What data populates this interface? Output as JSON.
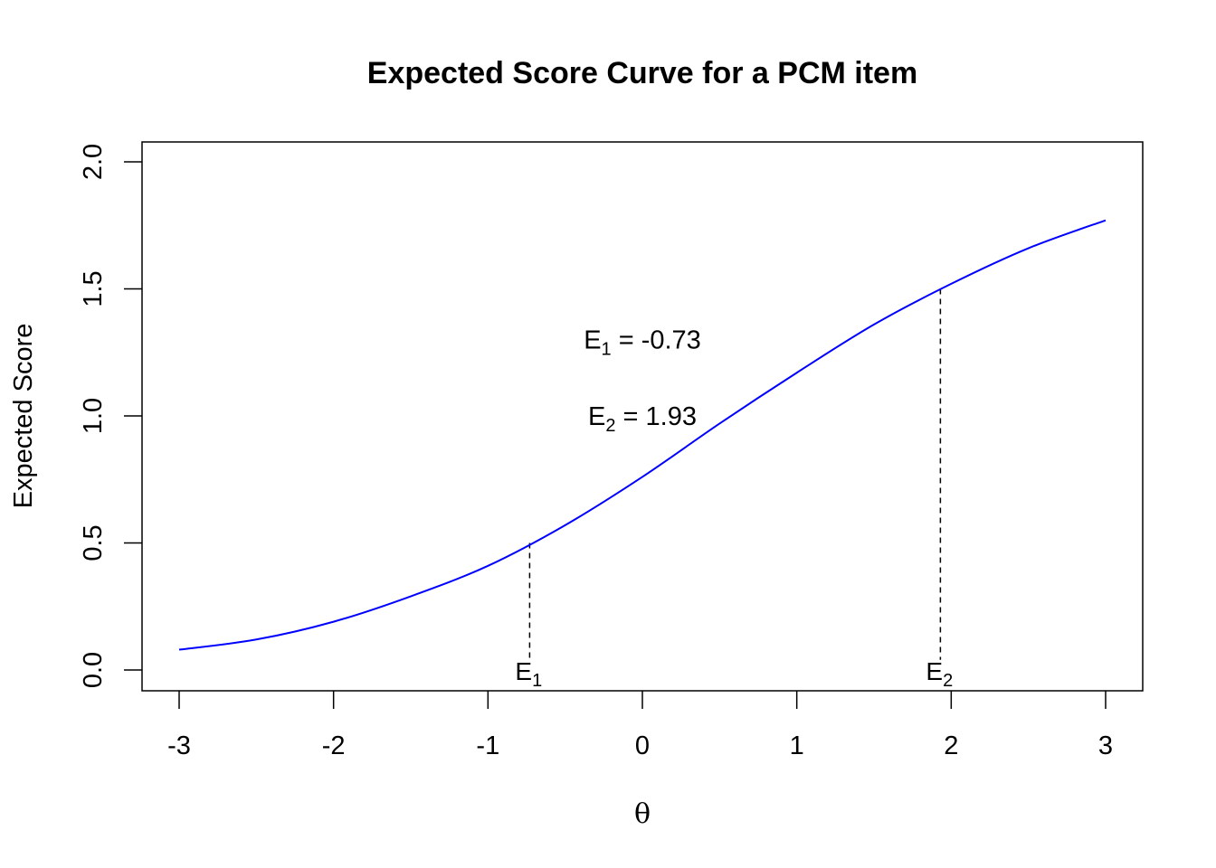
{
  "chart_data": {
    "type": "line",
    "title": "Expected Score Curve for a PCM item",
    "xlabel": "θ",
    "ylabel": "Expected Score",
    "xlim": [
      -3,
      3
    ],
    "ylim": [
      0,
      2
    ],
    "x_ticks": [
      "-3",
      "-2",
      "-1",
      "0",
      "1",
      "2",
      "3"
    ],
    "y_ticks": [
      "0.0",
      "0.5",
      "1.0",
      "1.5",
      "2.0"
    ],
    "grid": false,
    "series": [
      {
        "color": "#0000ff",
        "x": [
          -3,
          -2.5,
          -2,
          -1.5,
          -1,
          -0.5,
          0,
          0.5,
          1,
          1.5,
          2,
          2.5,
          3
        ],
        "y": [
          0.08,
          0.12,
          0.19,
          0.29,
          0.41,
          0.57,
          0.76,
          0.97,
          1.17,
          1.36,
          1.52,
          1.66,
          1.77
        ]
      }
    ],
    "reference_lines": [
      {
        "label_main": "E",
        "label_sub": "1",
        "x": -0.73,
        "y": 0.5
      },
      {
        "label_main": "E",
        "label_sub": "2",
        "x": 1.93,
        "y": 1.5
      }
    ],
    "annotations": [
      {
        "main": "E",
        "sub": "1",
        "rest": " = -0.73",
        "x": 0,
        "y": 1.3
      },
      {
        "main": "E",
        "sub": "2",
        "rest": " = 1.93",
        "x": 0,
        "y": 1.0
      }
    ]
  }
}
